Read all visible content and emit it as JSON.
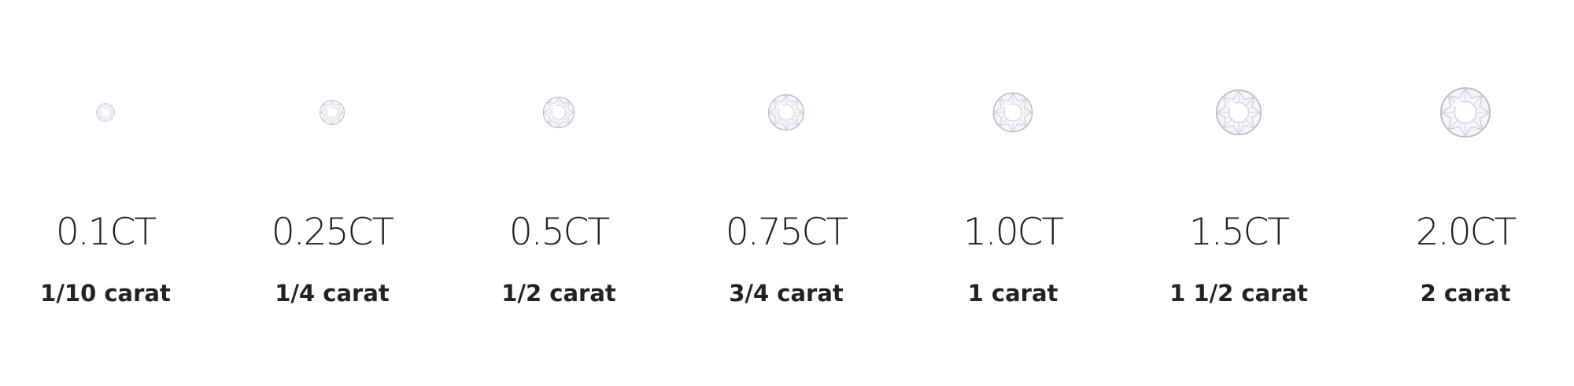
{
  "sizes": [
    {
      "ct": "0.1CT",
      "fraction": "1/10 carat",
      "carat_value": 0.1
    },
    {
      "ct": "0.25CT",
      "fraction": "1/4 carat",
      "carat_value": 0.25
    },
    {
      "ct": "0.5CT",
      "fraction": "1/2 carat",
      "carat_value": 0.5
    },
    {
      "ct": "0.75CT",
      "fraction": "3/4 carat",
      "carat_value": 0.75
    },
    {
      "ct": "1.0CT",
      "fraction": "1 carat",
      "carat_value": 1.0
    },
    {
      "ct": "1.5CT",
      "fraction": "1 1/2 carat",
      "carat_value": 1.5
    },
    {
      "ct": "2.0CT",
      "fraction": "2 carat",
      "carat_value": 2.0
    }
  ],
  "colors": {
    "text": "#1f1f1f",
    "gem_outline": "#b9bec6",
    "gem_fill": "#f4f6f8",
    "gem_facet": "#c9ced6"
  },
  "icon": "diamond-icon"
}
